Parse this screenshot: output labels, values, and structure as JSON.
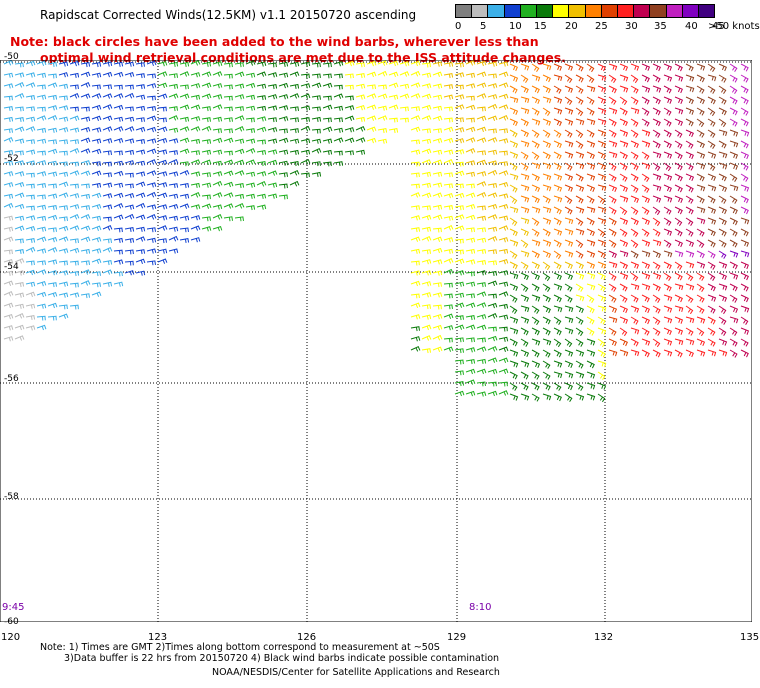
{
  "title": "Rapidscat Corrected Winds(12.5KM) v1.1 20150720 ascending",
  "note_line1": "Note: black circles have been added to the wind barbs, wherever less than",
  "note_line2": "optimal wind retrieval conditions are met due to the ISS attitude changes.",
  "legend": [
    {
      "label": "0",
      "color": "#7f7f7f"
    },
    {
      "label": "5",
      "color": "#bdbdbd"
    },
    {
      "label": "10",
      "color": "#3cb0e8"
    },
    {
      "label": "15",
      "color": "#1040d0"
    },
    {
      "label": "20",
      "color": "#20b020"
    },
    {
      "label": "25",
      "color": "#0a7a0a"
    },
    {
      "label": "30",
      "color": "#ffff00"
    },
    {
      "label": "35",
      "color": "#f0c000"
    },
    {
      "label": "40",
      "color": "#ff8000"
    },
    {
      "label": "45",
      "color": "#e04000"
    },
    {
      "label": "",
      "color": "#ff2020"
    },
    {
      "label": "",
      "color": "#c00050"
    },
    {
      "label": "",
      "color": "#904020"
    },
    {
      "label": "",
      "color": "#c020c0"
    },
    {
      "label": "",
      "color": "#8000c0"
    },
    {
      "label": ">50 knots",
      "color": "#400080"
    }
  ],
  "legend_ticks": [
    "0",
    "5",
    "10",
    "15",
    "20",
    "25",
    "30",
    "35",
    "40",
    "45",
    ">50 knots"
  ],
  "lat_labels": [
    "-50",
    "-52",
    "-54",
    "-56",
    "-58",
    "-60"
  ],
  "lon_labels": [
    "120",
    "123",
    "126",
    "129",
    "132",
    "135"
  ],
  "time_labels": [
    "9:45",
    "8:10"
  ],
  "footer_line1": "Note: 1) Times are GMT 2)Times along bottom correspond to measurement at ~50S",
  "footer_line2": "3)Data buffer is 22 hrs from 20150720 4) Black wind barbs indicate possible contamination",
  "footer_line3": "NOAA/NESDIS/Center for Satellite Applications and Research"
}
